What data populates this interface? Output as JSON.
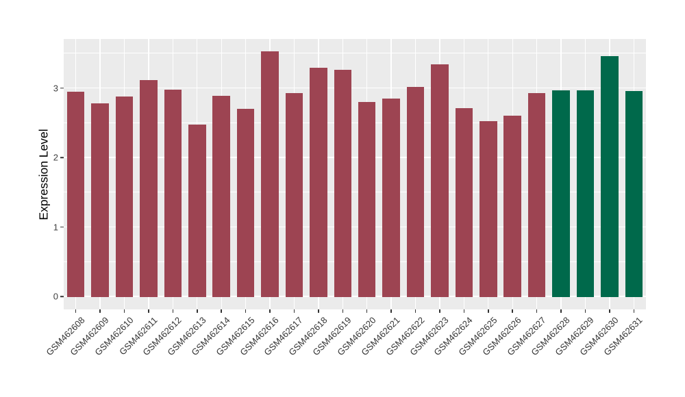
{
  "colors": {
    "background": "#FFFFFF",
    "panel_bg": "#EBEBEB",
    "grid": "#FFFFFF",
    "tick_marks": "#333333",
    "axis_text": "#404040",
    "x_label_text": "#333333",
    "bar_red": "#9D4452",
    "bar_green": "#00694B"
  },
  "chart_data": {
    "type": "bar",
    "title": "",
    "xlabel": "",
    "ylabel": "Expression Level",
    "ylim": [
      0,
      3.7
    ],
    "grid": "on",
    "legend": "none",
    "y_ticks": [
      0,
      1,
      2,
      3
    ],
    "y_minor_ticks": [
      0.5,
      1.5,
      2.5,
      3.5
    ],
    "categories": [
      "GSM462608",
      "GSM462609",
      "GSM462610",
      "GSM462611",
      "GSM462612",
      "GSM462613",
      "GSM462614",
      "GSM462615",
      "GSM462616",
      "GSM462617",
      "GSM462618",
      "GSM462619",
      "GSM462620",
      "GSM462621",
      "GSM462622",
      "GSM462623",
      "GSM462624",
      "GSM462625",
      "GSM462626",
      "GSM462627",
      "GSM462628",
      "GSM462629",
      "GSM462630",
      "GSM462631"
    ],
    "values": [
      2.95,
      2.78,
      2.88,
      3.11,
      2.98,
      2.47,
      2.89,
      2.7,
      3.53,
      2.93,
      3.29,
      3.26,
      2.8,
      2.85,
      3.01,
      3.34,
      2.71,
      2.52,
      2.6,
      2.93,
      2.97,
      2.97,
      3.46,
      2.96
    ],
    "bar_colors": [
      "#9D4452",
      "#9D4452",
      "#9D4452",
      "#9D4452",
      "#9D4452",
      "#9D4452",
      "#9D4452",
      "#9D4452",
      "#9D4452",
      "#9D4452",
      "#9D4452",
      "#9D4452",
      "#9D4452",
      "#9D4452",
      "#9D4452",
      "#9D4452",
      "#9D4452",
      "#9D4452",
      "#9D4452",
      "#9D4452",
      "#00694B",
      "#00694B",
      "#00694B",
      "#00694B"
    ]
  }
}
